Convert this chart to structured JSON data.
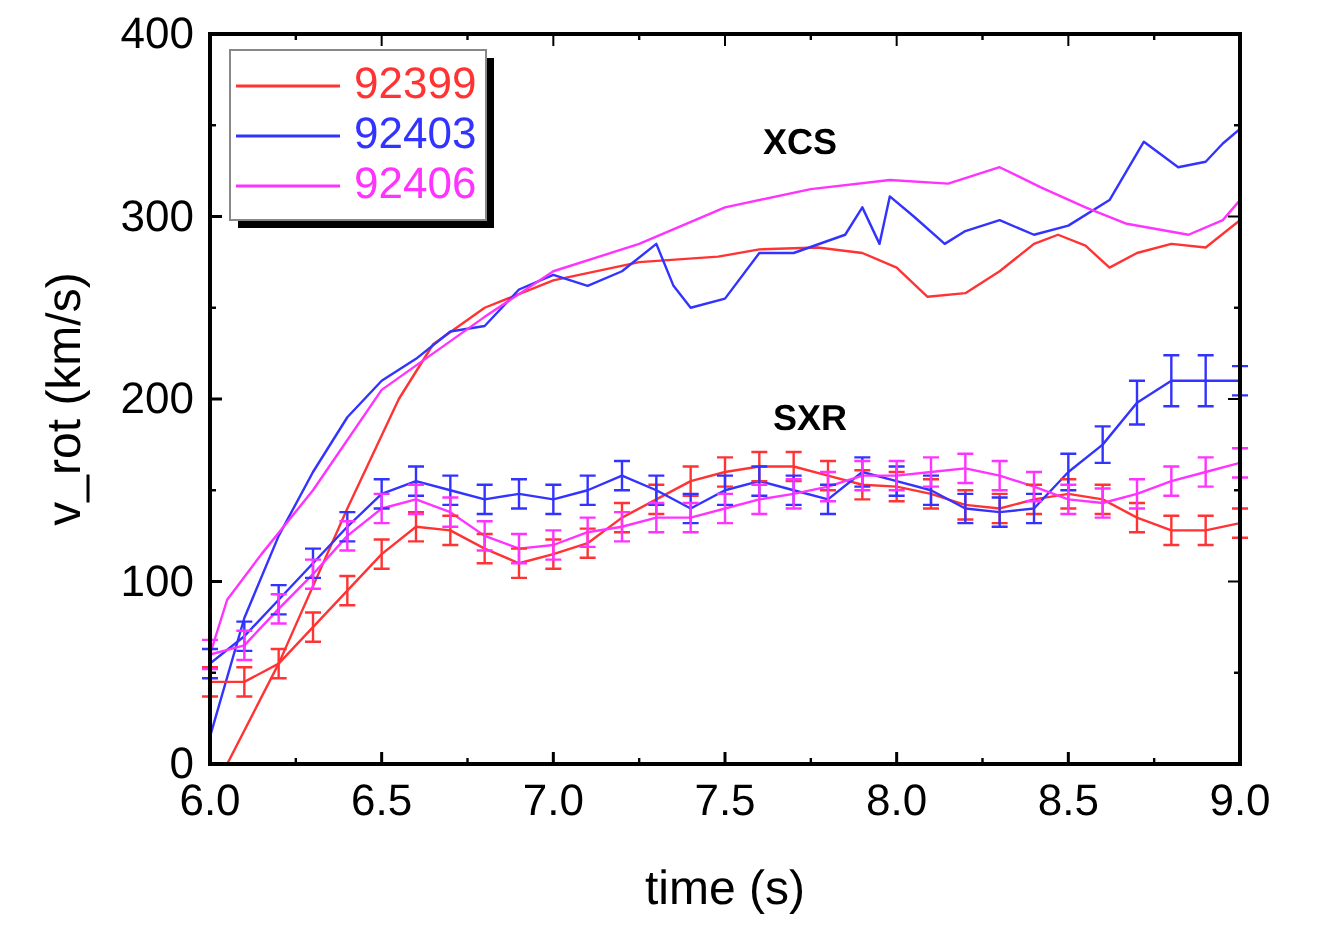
{
  "chart_data": {
    "type": "line",
    "xlabel": "time (s)",
    "ylabel": "v_rot (km/s)",
    "xlim": [
      6,
      9
    ],
    "xticks": [
      {
        "value": 6,
        "label": "6.0"
      },
      {
        "value": 6.5,
        "label": "6.5"
      },
      {
        "value": 7,
        "label": "7.0"
      },
      {
        "value": 7.5,
        "label": "7.5"
      },
      {
        "value": 8,
        "label": "8.0"
      },
      {
        "value": 8.5,
        "label": "8.5"
      },
      {
        "value": 9,
        "label": "9.0"
      }
    ],
    "ylim": [
      0,
      400
    ],
    "yticks": [
      0,
      100,
      200,
      300,
      400
    ],
    "grid": false,
    "legend": "top left",
    "marker": "none",
    "line_style": "solid",
    "annotations": [
      "XCS",
      "SXR"
    ],
    "series": [
      {
        "name": "92399",
        "color": "#ff3333",
        "x": [
          6.05,
          6.2,
          6.4,
          6.55,
          6.65,
          6.8,
          7.0,
          7.25,
          7.48,
          7.6,
          7.77,
          7.9,
          8.0,
          8.09,
          8.2,
          8.3,
          8.4,
          8.47,
          8.55,
          8.62,
          8.7,
          8.8,
          8.9,
          9.0
        ],
        "values": [
          0,
          55,
          140,
          200,
          230,
          250,
          265,
          275,
          278,
          282,
          283,
          280,
          272,
          256,
          258,
          270,
          285,
          290,
          284,
          272,
          280,
          285,
          283,
          298
        ]
      },
      {
        "name": "92403",
        "color": "#3333ff",
        "x": [
          6.0,
          6.1,
          6.2,
          6.3,
          6.4,
          6.5,
          6.6,
          6.7,
          6.8,
          6.9,
          7.0,
          7.1,
          7.2,
          7.3,
          7.35,
          7.4,
          7.5,
          7.6,
          7.7,
          7.85,
          7.9,
          7.95,
          7.98,
          8.05,
          8.14,
          8.2,
          8.3,
          8.4,
          8.5,
          8.62,
          8.72,
          8.82,
          8.9,
          8.95,
          9.0
        ],
        "values": [
          15,
          80,
          125,
          160,
          190,
          210,
          222,
          237,
          240,
          260,
          268,
          262,
          270,
          285,
          262,
          250,
          255,
          280,
          280,
          290,
          305,
          285,
          311,
          300,
          285,
          292,
          298,
          290,
          295,
          309,
          341,
          327,
          330,
          340,
          348
        ]
      },
      {
        "name": "92406",
        "color": "#ff33ff",
        "x": [
          6.0,
          6.05,
          6.15,
          6.3,
          6.5,
          6.65,
          6.8,
          7.0,
          7.25,
          7.5,
          7.75,
          7.98,
          8.15,
          8.3,
          8.42,
          8.55,
          8.67,
          8.85,
          8.95,
          9.0
        ],
        "values": [
          60,
          90,
          115,
          150,
          205,
          225,
          245,
          270,
          285,
          305,
          315,
          320,
          318,
          327,
          316,
          305,
          296,
          290,
          298,
          309
        ]
      },
      {
        "color": "#ff3333",
        "x": [
          6.0,
          6.1,
          6.2,
          6.3,
          6.4,
          6.5,
          6.6,
          6.7,
          6.8,
          6.9,
          7.0,
          7.1,
          7.2,
          7.3,
          7.4,
          7.5,
          7.6,
          7.7,
          7.8,
          7.9,
          8.0,
          8.1,
          8.2,
          8.3,
          8.4,
          8.5,
          8.6,
          8.7,
          8.8,
          8.9,
          9.0
        ],
        "values": [
          45,
          45,
          55,
          75,
          95,
          115,
          130,
          128,
          118,
          110,
          115,
          121,
          135,
          145,
          155,
          160,
          163,
          163,
          158,
          153,
          152,
          148,
          142,
          140,
          145,
          148,
          145,
          135,
          128,
          128,
          132
        ],
        "errors": [
          8,
          8,
          8,
          8,
          8,
          8,
          8,
          8,
          8,
          8,
          8,
          8,
          8,
          8,
          8,
          8,
          8,
          8,
          8,
          8,
          8,
          8,
          8,
          8,
          8,
          8,
          8,
          8,
          8,
          8,
          8
        ]
      },
      {
        "color": "#3333ff",
        "x": [
          6.0,
          6.1,
          6.2,
          6.3,
          6.4,
          6.5,
          6.6,
          6.7,
          6.8,
          6.9,
          7.0,
          7.1,
          7.2,
          7.3,
          7.4,
          7.5,
          7.6,
          7.7,
          7.8,
          7.9,
          8.0,
          8.1,
          8.2,
          8.3,
          8.4,
          8.5,
          8.6,
          8.7,
          8.8,
          8.9,
          9.0
        ],
        "values": [
          55,
          70,
          90,
          110,
          130,
          148,
          155,
          150,
          145,
          148,
          145,
          150,
          158,
          150,
          140,
          150,
          155,
          150,
          145,
          160,
          155,
          150,
          140,
          138,
          140,
          160,
          175,
          198,
          210,
          210,
          210
        ],
        "errors": [
          8,
          8,
          8,
          8,
          8,
          8,
          8,
          8,
          8,
          8,
          8,
          8,
          8,
          8,
          8,
          8,
          8,
          8,
          8,
          8,
          8,
          8,
          8,
          8,
          8,
          10,
          10,
          12,
          14,
          14,
          8
        ]
      },
      {
        "color": "#ff33ff",
        "x": [
          6.0,
          6.1,
          6.2,
          6.3,
          6.4,
          6.5,
          6.6,
          6.7,
          6.8,
          6.9,
          7.0,
          7.1,
          7.2,
          7.3,
          7.4,
          7.5,
          7.6,
          7.7,
          7.8,
          7.9,
          8.0,
          8.1,
          8.2,
          8.3,
          8.4,
          8.5,
          8.6,
          8.7,
          8.8,
          8.9,
          9.0
        ],
        "values": [
          60,
          65,
          85,
          104,
          125,
          140,
          145,
          138,
          125,
          118,
          120,
          127,
          130,
          135,
          135,
          140,
          145,
          148,
          152,
          158,
          158,
          160,
          162,
          158,
          152,
          145,
          143,
          148,
          155,
          160,
          165
        ],
        "errors": [
          8,
          8,
          8,
          8,
          8,
          8,
          8,
          8,
          8,
          8,
          8,
          8,
          8,
          8,
          8,
          8,
          8,
          8,
          8,
          8,
          8,
          8,
          8,
          8,
          8,
          8,
          8,
          8,
          8,
          8,
          8
        ]
      }
    ]
  }
}
